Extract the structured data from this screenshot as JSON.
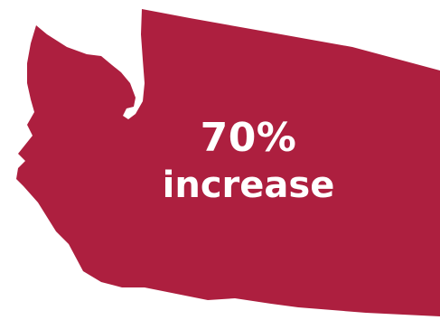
{
  "graphic": {
    "shape_icon": "washington-state-silhouette",
    "fill_color": "#ad1f3f",
    "background_color": "#ffffff"
  },
  "stat": {
    "value": "70%",
    "label": "increase",
    "text_color": "#ffffff"
  }
}
